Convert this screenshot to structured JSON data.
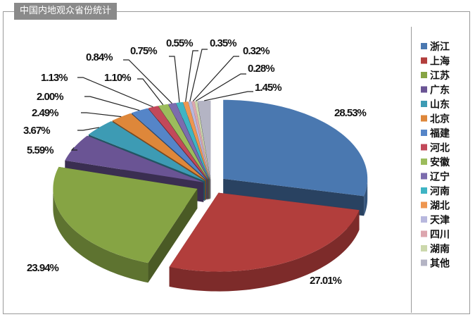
{
  "title": "中国内地观众省份统计",
  "chart_data": {
    "type": "pie",
    "style": "3d-exploded",
    "legend_position": "right",
    "categories": [
      "浙江",
      "上海",
      "江苏",
      "广东",
      "山东",
      "北京",
      "福建",
      "河北",
      "安徽",
      "辽宁",
      "河南",
      "湖北",
      "天津",
      "四川",
      "湖南",
      "其他"
    ],
    "values": [
      28.53,
      27.01,
      23.94,
      5.59,
      3.67,
      2.49,
      2.0,
      1.13,
      1.1,
      0.84,
      0.75,
      0.55,
      0.35,
      0.32,
      0.28,
      1.45
    ],
    "data_labels": [
      "28.53%",
      "27.01%",
      "23.94%",
      "5.59%",
      "3.67%",
      "2.49%",
      "2.00%",
      "1.13%",
      "1.10%",
      "0.84%",
      "0.75%",
      "0.55%",
      "0.35%",
      "0.32%",
      "0.28%",
      "1.45%"
    ],
    "colors": [
      "#4a78b0",
      "#b23e3c",
      "#86a444",
      "#6a5494",
      "#3d9bb4",
      "#de873a",
      "#5585c8",
      "#c2485a",
      "#9cbc5c",
      "#7c6cae",
      "#3fb4c4",
      "#ee9650",
      "#b8b8de",
      "#dca6ae",
      "#ccd8ac",
      "#b4b4c4"
    ]
  }
}
